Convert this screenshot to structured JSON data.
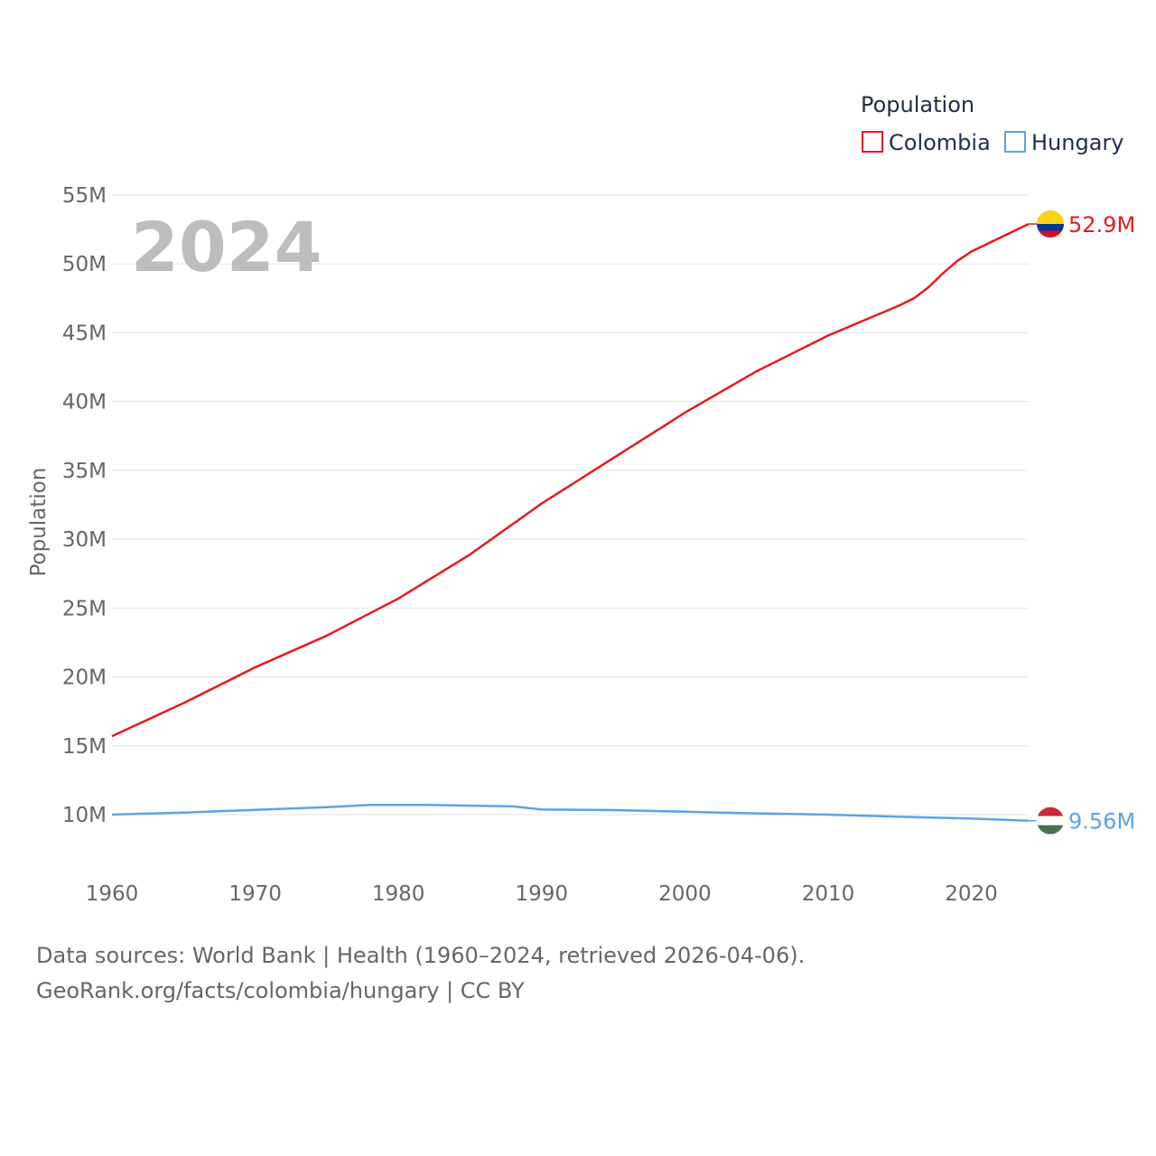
{
  "chart_data": {
    "type": "line",
    "title": "Population",
    "ylabel": "Population",
    "xlabel": "",
    "year_label": "2024",
    "xlim": [
      1960,
      2024
    ],
    "ylim": [
      10000000,
      55000000
    ],
    "x_ticks": [
      {
        "value": 1960,
        "label": "1960"
      },
      {
        "value": 1970,
        "label": "1970"
      },
      {
        "value": 1980,
        "label": "1980"
      },
      {
        "value": 1990,
        "label": "1990"
      },
      {
        "value": 2000,
        "label": "2000"
      },
      {
        "value": 2010,
        "label": "2010"
      },
      {
        "value": 2020,
        "label": "2020"
      }
    ],
    "y_ticks": [
      {
        "value": 10000000,
        "label": "10M"
      },
      {
        "value": 15000000,
        "label": "15M"
      },
      {
        "value": 20000000,
        "label": "20M"
      },
      {
        "value": 25000000,
        "label": "25M"
      },
      {
        "value": 30000000,
        "label": "30M"
      },
      {
        "value": 35000000,
        "label": "35M"
      },
      {
        "value": 40000000,
        "label": "40M"
      },
      {
        "value": 45000000,
        "label": "45M"
      },
      {
        "value": 50000000,
        "label": "50M"
      },
      {
        "value": 55000000,
        "label": "55M"
      }
    ],
    "legend": {
      "title": "Population",
      "position": "top-right"
    },
    "series": [
      {
        "name": "Colombia",
        "color": "#e8191c",
        "end_label": "52.9M",
        "flag": {
          "stripes": [
            "#fcd116",
            "#003893",
            "#ce1126"
          ]
        },
        "points": [
          [
            1960,
            15700000
          ],
          [
            1965,
            18100000
          ],
          [
            1970,
            20700000
          ],
          [
            1975,
            23000000
          ],
          [
            1980,
            25700000
          ],
          [
            1985,
            28900000
          ],
          [
            1990,
            32600000
          ],
          [
            1995,
            35900000
          ],
          [
            2000,
            39200000
          ],
          [
            2005,
            42200000
          ],
          [
            2010,
            44800000
          ],
          [
            2015,
            47000000
          ],
          [
            2016,
            47500000
          ],
          [
            2017,
            48300000
          ],
          [
            2018,
            49300000
          ],
          [
            2019,
            50200000
          ],
          [
            2020,
            50900000
          ],
          [
            2021,
            51400000
          ],
          [
            2022,
            51900000
          ],
          [
            2023,
            52400000
          ],
          [
            2024,
            52900000
          ]
        ]
      },
      {
        "name": "Hungary",
        "color": "#5aa3e6",
        "end_label": "9.56M",
        "flag": {
          "stripes": [
            "#ce2939",
            "#ffffff",
            "#477050"
          ]
        },
        "points": [
          [
            1960,
            10000000
          ],
          [
            1965,
            10150000
          ],
          [
            1970,
            10340000
          ],
          [
            1975,
            10540000
          ],
          [
            1978,
            10700000
          ],
          [
            1980,
            10710000
          ],
          [
            1982,
            10700000
          ],
          [
            1985,
            10650000
          ],
          [
            1988,
            10600000
          ],
          [
            1990,
            10370000
          ],
          [
            1995,
            10330000
          ],
          [
            2000,
            10210000
          ],
          [
            2005,
            10090000
          ],
          [
            2010,
            10000000
          ],
          [
            2015,
            9840000
          ],
          [
            2020,
            9710000
          ],
          [
            2024,
            9560000
          ]
        ]
      }
    ]
  },
  "footer": {
    "line1": "Data sources: World Bank | Health (1960–2024, retrieved 2026-04-06).",
    "line2": "GeoRank.org/facts/colombia/hungary | CC BY"
  }
}
